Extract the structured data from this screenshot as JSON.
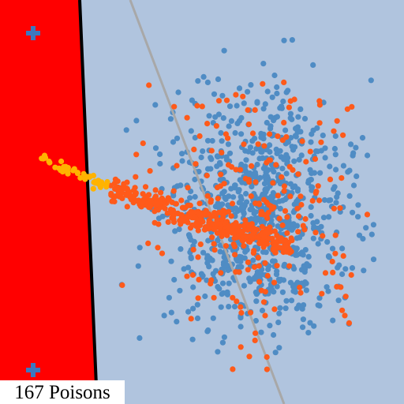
{
  "caption": "167 Poisons",
  "colors": {
    "background": "#b0c4de",
    "rejected_region": "#ff0000",
    "decision_boundary": "#000000",
    "clean_boundary": "#a8a8a8",
    "clean_points": "#4f8cc4",
    "poison_points": "#ff5a1a",
    "highlight_poisons": "#ffb300",
    "marker": "#3c78c0"
  },
  "markers": [
    {
      "name": "plus-marker-top",
      "glyph": "plus"
    },
    {
      "name": "plus-marker-bottom",
      "glyph": "plus"
    }
  ]
}
